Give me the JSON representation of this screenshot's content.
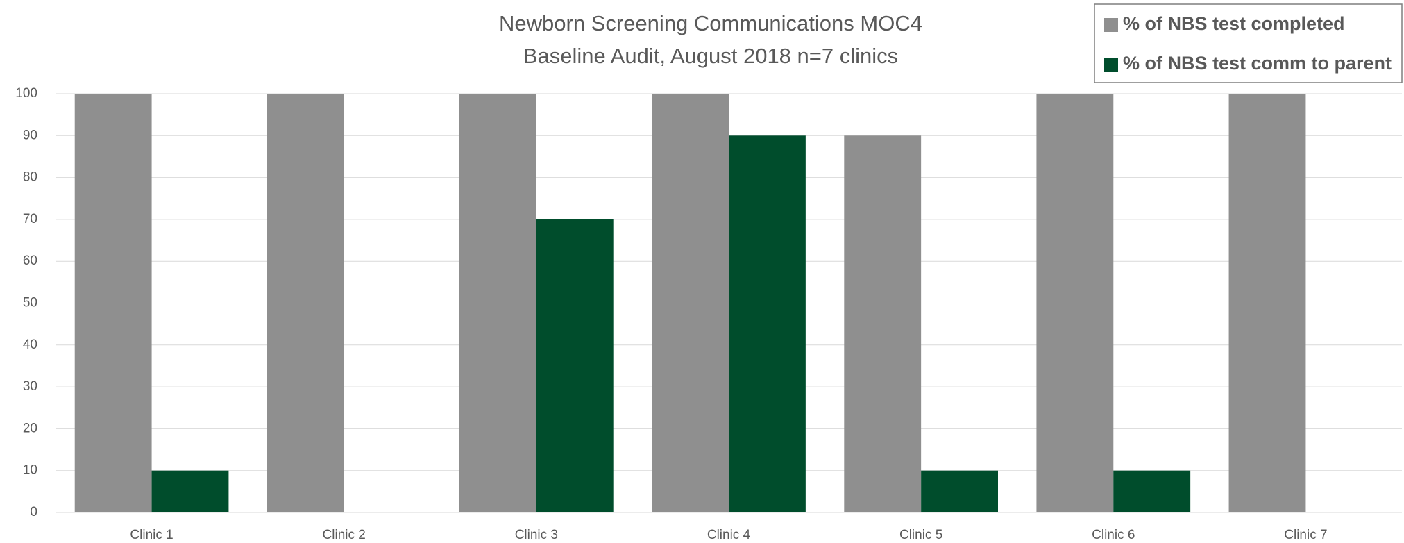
{
  "chart_data": {
    "type": "bar",
    "title": "Newborn Screening Communications MOC4",
    "subtitle": "Baseline Audit, August 2018 n=7 clinics",
    "categories": [
      "Clinic 1",
      "Clinic 2",
      "Clinic 3",
      "Clinic 4",
      "Clinic 5",
      "Clinic 6",
      "Clinic 7"
    ],
    "series": [
      {
        "name": "% of NBS test completed",
        "color": "#8f8f8f",
        "values": [
          100,
          100,
          100,
          100,
          90,
          100,
          100
        ]
      },
      {
        "name": "% of NBS test comm to parent",
        "color": "#004d2c",
        "values": [
          10,
          0,
          70,
          90,
          10,
          10,
          0
        ]
      }
    ],
    "ylim": [
      0,
      100
    ],
    "yticks": [
      0,
      10,
      20,
      30,
      40,
      50,
      60,
      70,
      80,
      90,
      100
    ],
    "grid": true,
    "legend": "top-right"
  }
}
